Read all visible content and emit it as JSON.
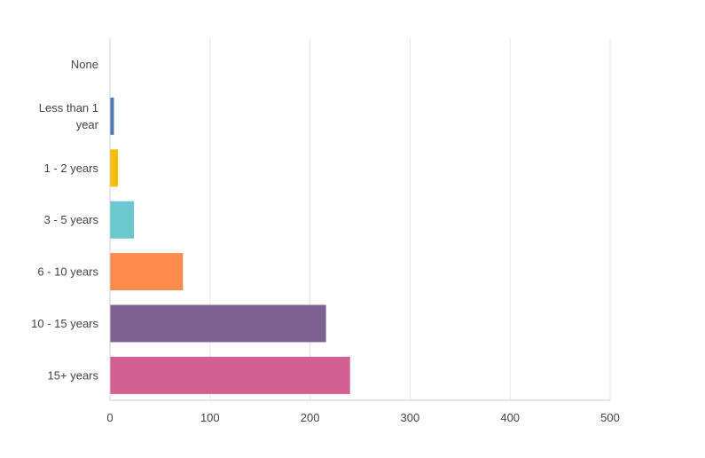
{
  "chart_data": {
    "type": "bar",
    "orientation": "horizontal",
    "categories": [
      [
        "None"
      ],
      [
        "Less than 1",
        "year"
      ],
      [
        "1 - 2 years"
      ],
      [
        "3 - 5 years"
      ],
      [
        "6 - 10 years"
      ],
      [
        "10 - 15 years"
      ],
      [
        "15+ years"
      ]
    ],
    "values": [
      0,
      4,
      8,
      24,
      73,
      216,
      240
    ],
    "colors": [
      "#4c8ac6",
      "#4f7ab8",
      "#f9be00",
      "#6bc8cd",
      "#ff8b4f",
      "#7f6190",
      "#d25f91"
    ],
    "xlim": [
      0,
      500
    ],
    "xticks": [
      0,
      100,
      200,
      300,
      400,
      500
    ],
    "xtick_labels": [
      "0",
      "100",
      "200",
      "300",
      "400",
      "500"
    ],
    "grid": true
  }
}
